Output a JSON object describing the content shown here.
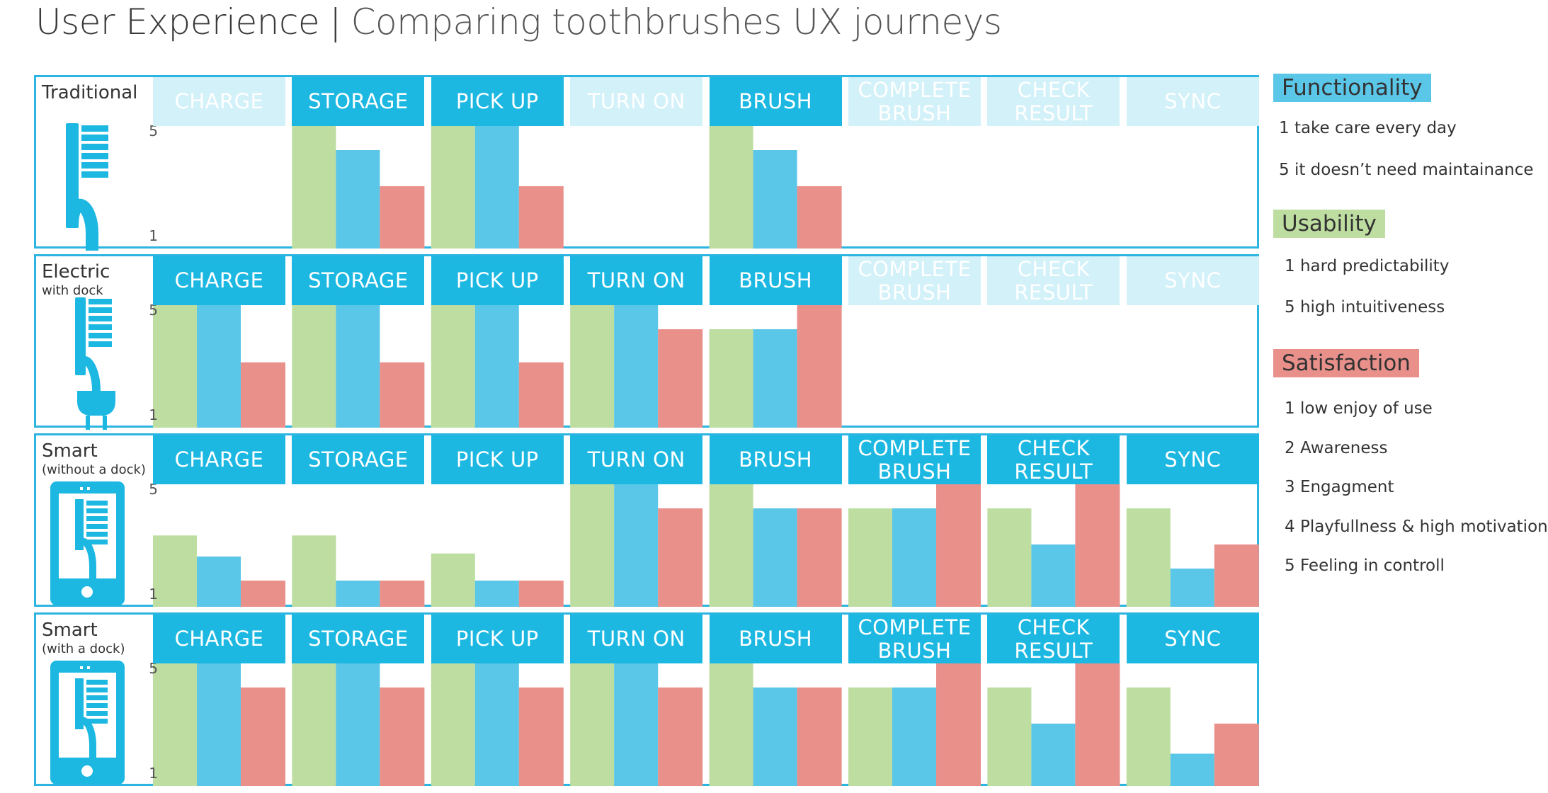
{
  "header": {
    "title_main": "User Experience",
    "separator": "|",
    "title_sub": "Comparing toothbrushes UX journeys"
  },
  "colors": {
    "functionality": "#5ac6e8",
    "usability": "#bedda0",
    "satisfaction": "#ea908b",
    "stage_active": "#1cb8e2",
    "stage_inactive": "#d3f1f9",
    "frame": "#2bb5e0"
  },
  "legend": {
    "functionality": {
      "label": "Functionality",
      "items": [
        "1 take care every day",
        "5 it doesn’t need maintainance"
      ]
    },
    "usability": {
      "label": "Usability",
      "items": [
        "1 hard predictability",
        "5 high intuitiveness"
      ]
    },
    "satisfaction": {
      "label": "Satisfaction",
      "items": [
        "1 low enjoy of use",
        "2 Awareness",
        "3 Engagment",
        "4 Playfullness & high motivation",
        "5 Feeling in controll"
      ]
    }
  },
  "chart_data": {
    "type": "bar",
    "ylim": [
      1,
      5
    ],
    "yticks": [
      "5",
      "1"
    ],
    "stages": [
      "CHARGE",
      "STORAGE",
      "PICK UP",
      "TURN ON",
      "BRUSH",
      "COMPLETE\nBRUSH",
      "CHECK\nRESULT",
      "SYNC"
    ],
    "series_order": [
      "Usability",
      "Functionality",
      "Satisfaction"
    ],
    "rows": [
      {
        "title": "Traditional",
        "subtitle": "",
        "icon": "toothbrush-icon",
        "active": [
          false,
          true,
          true,
          false,
          true,
          false,
          false,
          false
        ],
        "values": [
          null,
          [
            5,
            4.2,
            3.0
          ],
          [
            5,
            5,
            3.0
          ],
          null,
          [
            5,
            4.2,
            3.0
          ],
          null,
          null,
          null
        ]
      },
      {
        "title": "Electric",
        "subtitle": "with dock",
        "icon": "plug-toothbrush-icon",
        "active": [
          true,
          true,
          true,
          true,
          true,
          false,
          false,
          false
        ],
        "values": [
          [
            5,
            5,
            3.1
          ],
          [
            5,
            5,
            3.1
          ],
          [
            5,
            5,
            3.1
          ],
          [
            5,
            5,
            4.2
          ],
          [
            4.2,
            4.2,
            5
          ],
          null,
          null,
          null
        ]
      },
      {
        "title": "Smart",
        "subtitle": "(without a dock)",
        "icon": "smartphone-toothbrush-icon",
        "active": [
          true,
          true,
          true,
          true,
          true,
          true,
          true,
          true
        ],
        "values": [
          [
            3.3,
            2.6,
            1.8
          ],
          [
            3.3,
            1.8,
            1.8
          ],
          [
            2.7,
            1.8,
            1.8
          ],
          [
            5,
            5,
            4.2
          ],
          [
            5,
            4.2,
            4.2
          ],
          [
            4.2,
            4.2,
            5
          ],
          [
            4.2,
            3.0,
            5
          ],
          [
            4.2,
            2.2,
            3.0
          ]
        ]
      },
      {
        "title": "Smart",
        "subtitle": "(with a dock)",
        "icon": "smartphone-dock-toothbrush-icon",
        "active": [
          true,
          true,
          true,
          true,
          true,
          true,
          true,
          true
        ],
        "values": [
          [
            5,
            5,
            4.2
          ],
          [
            5,
            5,
            4.2
          ],
          [
            5,
            5,
            4.2
          ],
          [
            5,
            5,
            4.2
          ],
          [
            5,
            4.2,
            4.2
          ],
          [
            4.2,
            4.2,
            5
          ],
          [
            4.2,
            3.0,
            5
          ],
          [
            4.2,
            2.0,
            3.0
          ]
        ]
      }
    ]
  }
}
